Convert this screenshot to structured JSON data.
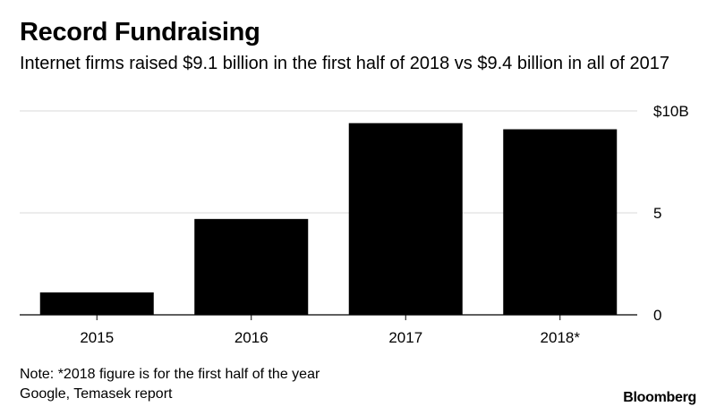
{
  "chart_data": {
    "type": "bar",
    "title": "Record Fundraising",
    "subtitle": "Internet firms raised $9.1 billion in the first half of 2018 vs $9.4 billion in all of 2017",
    "categories": [
      "2015",
      "2016",
      "2017",
      "2018*"
    ],
    "values": [
      1.1,
      4.7,
      9.4,
      9.1
    ],
    "unit": "billion USD",
    "ylim": [
      0,
      10
    ],
    "yticks": [
      0,
      5,
      10
    ],
    "ytick_labels": [
      "0",
      "5",
      "$10B"
    ],
    "y_axis_side": "right",
    "grid": true,
    "bar_color": "#000000",
    "grid_color": "#d9d9d9",
    "note": "Note: *2018 figure is for the first half of the year",
    "source": "Google, Temasek report"
  },
  "brand": "Bloomberg"
}
